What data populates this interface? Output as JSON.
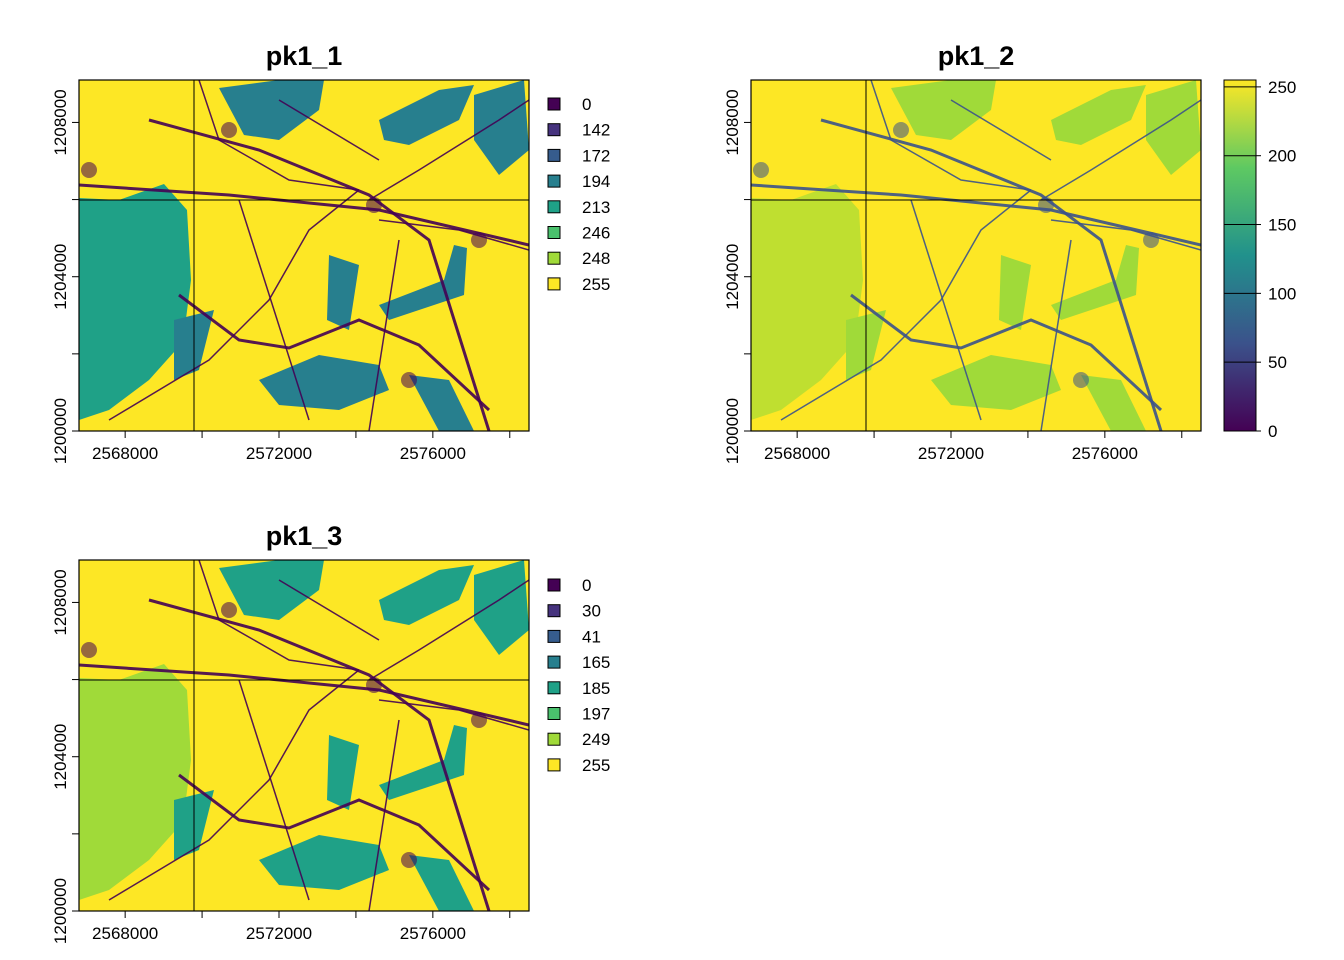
{
  "chart_data": [
    {
      "type": "heatmap",
      "title": "pk1_1",
      "xlim": [
        2566800,
        2578500
      ],
      "ylim": [
        1200000,
        1209100
      ],
      "x_ticks": [
        "2568000",
        "2572000",
        "2576000"
      ],
      "x_tick_values": [
        2568000,
        2572000,
        2576000
      ],
      "y_ticks": [
        "1200000",
        "1204000",
        "1208000"
      ],
      "y_tick_values": [
        1200000,
        1204000,
        1208000
      ],
      "legend_type": "categorical",
      "legend_position": "right",
      "legend": [
        {
          "label": "0",
          "color": "#440154"
        },
        {
          "label": "142",
          "color": "#46337e"
        },
        {
          "label": "172",
          "color": "#365c8d"
        },
        {
          "label": "194",
          "color": "#277f8e"
        },
        {
          "label": "213",
          "color": "#1fa187"
        },
        {
          "label": "246",
          "color": "#4ac16d"
        },
        {
          "label": "248",
          "color": "#a0da39"
        },
        {
          "label": "255",
          "color": "#fde725"
        }
      ],
      "lake_color": "#1fa187",
      "feature_color": "#277f8e",
      "base_color": "#fde725",
      "line_color": "#440154"
    },
    {
      "type": "heatmap",
      "title": "pk1_2",
      "xlim": [
        2566800,
        2578500
      ],
      "ylim": [
        1200000,
        1209100
      ],
      "x_ticks": [
        "2568000",
        "2572000",
        "2576000"
      ],
      "x_tick_values": [
        2568000,
        2572000,
        2576000
      ],
      "y_ticks": [
        "1200000",
        "1204000",
        "1208000"
      ],
      "y_tick_values": [
        1200000,
        1204000,
        1208000
      ],
      "legend_type": "continuous",
      "legend_position": "right",
      "scale_min": 0,
      "scale_max": 255,
      "scale_ticks": [
        "0",
        "50",
        "100",
        "150",
        "200",
        "250"
      ],
      "scale_tick_values": [
        0,
        50,
        100,
        150,
        200,
        250
      ],
      "colors": [
        "#440154",
        "#3b528b",
        "#21918c",
        "#5ec962",
        "#fde725"
      ],
      "lake_color": "#bfdf30",
      "feature_color": "#a0da39",
      "base_color": "#fde725",
      "line_color": "#3b528b"
    },
    {
      "type": "heatmap",
      "title": "pk1_3",
      "xlim": [
        2566800,
        2578500
      ],
      "ylim": [
        1200000,
        1209100
      ],
      "x_ticks": [
        "2568000",
        "2572000",
        "2576000"
      ],
      "x_tick_values": [
        2568000,
        2572000,
        2576000
      ],
      "y_ticks": [
        "1200000",
        "1204000",
        "1208000"
      ],
      "y_tick_values": [
        1200000,
        1204000,
        1208000
      ],
      "legend_type": "categorical",
      "legend_position": "right",
      "legend": [
        {
          "label": "0",
          "color": "#440154"
        },
        {
          "label": "30",
          "color": "#46337e"
        },
        {
          "label": "41",
          "color": "#365c8d"
        },
        {
          "label": "165",
          "color": "#277f8e"
        },
        {
          "label": "185",
          "color": "#1fa187"
        },
        {
          "label": "197",
          "color": "#4ac16d"
        },
        {
          "label": "249",
          "color": "#a0da39"
        },
        {
          "label": "255",
          "color": "#fde725"
        }
      ],
      "lake_color": "#a0da39",
      "feature_color": "#1fa187",
      "base_color": "#fde725",
      "line_color": "#440154"
    }
  ]
}
